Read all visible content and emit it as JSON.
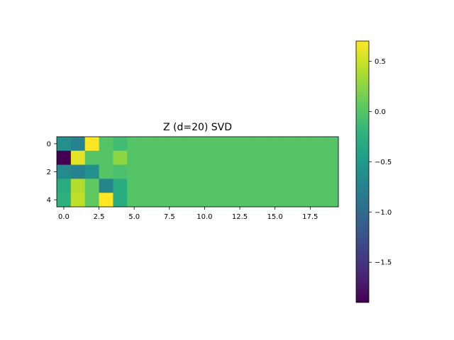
{
  "chart_data": {
    "type": "heatmap",
    "title": "Z (d=20) SVD",
    "rows": 5,
    "cols": 20,
    "values": [
      [
        -0.6,
        -0.75,
        0.7,
        0.0,
        -0.1,
        0.0,
        0.0,
        0.0,
        0.0,
        0.0,
        0.0,
        0.0,
        0.0,
        0.0,
        0.0,
        0.0,
        0.0,
        0.0,
        0.0,
        0.0
      ],
      [
        -1.9,
        0.6,
        0.0,
        0.0,
        0.25,
        0.0,
        0.0,
        0.0,
        0.0,
        0.0,
        0.0,
        0.0,
        0.0,
        0.0,
        0.0,
        0.0,
        0.0,
        0.0,
        0.0,
        0.0
      ],
      [
        -0.65,
        -0.75,
        -0.6,
        0.0,
        -0.05,
        0.0,
        0.0,
        0.0,
        0.0,
        0.0,
        0.0,
        0.0,
        0.0,
        0.0,
        0.0,
        0.0,
        0.0,
        0.0,
        0.0,
        0.0
      ],
      [
        -0.3,
        0.4,
        0.05,
        -0.7,
        -0.3,
        0.0,
        0.0,
        0.0,
        0.0,
        0.0,
        0.0,
        0.0,
        0.0,
        0.0,
        0.0,
        0.0,
        0.0,
        0.0,
        0.0,
        0.0
      ],
      [
        -0.25,
        0.45,
        0.05,
        0.7,
        -0.3,
        0.0,
        0.0,
        0.0,
        0.0,
        0.0,
        0.0,
        0.0,
        0.0,
        0.0,
        0.0,
        0.0,
        0.0,
        0.0,
        0.0,
        0.0
      ]
    ],
    "vmin": -1.9,
    "vmax": 0.7,
    "x_ticks": [
      0,
      2.5,
      5,
      7.5,
      10,
      12.5,
      15,
      17.5
    ],
    "x_tick_labels": [
      "0.0",
      "2.5",
      "5.0",
      "7.5",
      "10.0",
      "12.5",
      "15.0",
      "17.5"
    ],
    "y_ticks": [
      0,
      2,
      4
    ],
    "y_tick_labels": [
      "0",
      "2",
      "4"
    ],
    "colorbar": {
      "colormap": "viridis",
      "ticks": [
        0.5,
        0.0,
        -0.5,
        -1.0,
        -1.5
      ],
      "tick_labels": [
        "0.5",
        "0.0",
        "−0.5",
        "−1.0",
        "−1.5"
      ]
    },
    "grid": false
  }
}
